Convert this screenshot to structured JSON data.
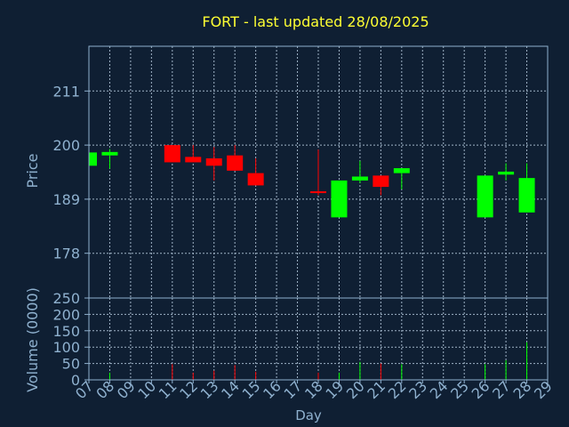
{
  "colors": {
    "background": "#0f1f33",
    "title": "#ffff33",
    "axis_text": "#8fb1cf",
    "frame": "#8fb1cf",
    "grid": "#9fb3c6",
    "up": "#00ff00",
    "down": "#ff0000"
  },
  "chart_data": [
    {
      "type": "candlestick",
      "title": "FORT - last updated 28/08/2025",
      "ylabel": "Price",
      "ylim": [
        168.9,
        220.1
      ],
      "yticks": [
        178,
        189,
        200,
        211
      ],
      "x": [
        "07",
        "08",
        "09",
        "10",
        "11",
        "12",
        "13",
        "14",
        "15",
        "16",
        "17",
        "18",
        "19",
        "20",
        "21",
        "22",
        "23",
        "24",
        "25",
        "26",
        "27",
        "28",
        "29"
      ],
      "grid": true,
      "candles": [
        {
          "day": "07",
          "open": 195.8,
          "close": 198.5,
          "high": 198.5,
          "low": 195.8
        },
        {
          "day": "08",
          "open": 197.9,
          "close": 198.6,
          "high": 199.2,
          "low": 195.2
        },
        {
          "day": "11",
          "open": 200.0,
          "close": 196.5,
          "high": 200.0,
          "low": 196.5
        },
        {
          "day": "12",
          "open": 197.6,
          "close": 196.5,
          "high": 200.0,
          "low": 196.5
        },
        {
          "day": "13",
          "open": 197.3,
          "close": 195.8,
          "high": 199.6,
          "low": 192.8
        },
        {
          "day": "14",
          "open": 197.9,
          "close": 194.8,
          "high": 200.0,
          "low": 194.8
        },
        {
          "day": "15",
          "open": 194.3,
          "close": 191.8,
          "high": 197.3,
          "low": 191.8
        },
        {
          "day": "18",
          "open": 190.6,
          "close": 190.3,
          "high": 199.1,
          "low": 189.8
        },
        {
          "day": "19",
          "open": 185.3,
          "close": 192.8,
          "high": 192.8,
          "low": 185.3
        },
        {
          "day": "20",
          "open": 192.8,
          "close": 193.6,
          "high": 196.8,
          "low": 192.3
        },
        {
          "day": "21",
          "open": 193.8,
          "close": 191.5,
          "high": 193.8,
          "low": 189.8
        },
        {
          "day": "22",
          "open": 194.3,
          "close": 195.3,
          "high": 195.3,
          "low": 191.0
        },
        {
          "day": "26",
          "open": 185.3,
          "close": 193.8,
          "high": 193.8,
          "low": 185.3
        },
        {
          "day": "27",
          "open": 194.0,
          "close": 194.6,
          "high": 196.3,
          "low": 192.8
        },
        {
          "day": "28",
          "open": 186.3,
          "close": 193.3,
          "high": 196.3,
          "low": 186.3
        }
      ]
    },
    {
      "type": "bar",
      "ylabel": "Volume (0000)",
      "xlabel": "Day",
      "ylim": [
        0,
        250
      ],
      "yticks": [
        0,
        50,
        100,
        150,
        200,
        250
      ],
      "x": [
        "07",
        "08",
        "09",
        "10",
        "11",
        "12",
        "13",
        "14",
        "15",
        "16",
        "17",
        "18",
        "19",
        "20",
        "21",
        "22",
        "23",
        "24",
        "25",
        "26",
        "27",
        "28",
        "29"
      ],
      "grid": true,
      "bars": [
        {
          "day": "08",
          "value": 22,
          "direction": "up"
        },
        {
          "day": "11",
          "value": 48,
          "direction": "down"
        },
        {
          "day": "12",
          "value": 22,
          "direction": "down"
        },
        {
          "day": "13",
          "value": 28,
          "direction": "down"
        },
        {
          "day": "14",
          "value": 45,
          "direction": "down"
        },
        {
          "day": "15",
          "value": 25,
          "direction": "down"
        },
        {
          "day": "18",
          "value": 22,
          "direction": "down"
        },
        {
          "day": "19",
          "value": 22,
          "direction": "up"
        },
        {
          "day": "20",
          "value": 55,
          "direction": "up"
        },
        {
          "day": "21",
          "value": 50,
          "direction": "down"
        },
        {
          "day": "22",
          "value": 48,
          "direction": "up"
        },
        {
          "day": "26",
          "value": 48,
          "direction": "up"
        },
        {
          "day": "27",
          "value": 60,
          "direction": "up"
        },
        {
          "day": "28",
          "value": 115,
          "direction": "up"
        }
      ]
    }
  ]
}
